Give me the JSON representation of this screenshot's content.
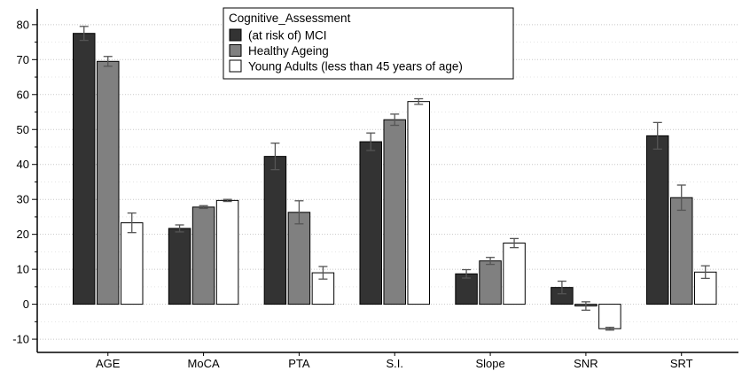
{
  "chart_data": {
    "type": "bar",
    "categories": [
      "AGE",
      "MoCA",
      "PTA",
      "S.I.",
      "Slope",
      "SNR",
      "SRT"
    ],
    "ylim": [
      -12,
      84
    ],
    "yticks": [
      -10,
      0,
      10,
      20,
      30,
      40,
      50,
      60,
      70,
      80
    ],
    "grid": "horizontal-dotted",
    "legend": {
      "title": "Cognitive_Assessment",
      "placement": "top-center"
    },
    "series": [
      {
        "name": "(at risk of) MCI",
        "color": "#333333",
        "values": [
          77.5,
          21.7,
          42.3,
          46.5,
          8.7,
          4.8,
          48.2
        ],
        "errors": [
          2.0,
          1.0,
          3.8,
          2.5,
          1.2,
          1.8,
          3.8
        ]
      },
      {
        "name": "Healthy Ageing",
        "color": "#808080",
        "values": [
          69.5,
          27.8,
          26.3,
          52.8,
          12.4,
          -0.5,
          30.5
        ],
        "errors": [
          1.4,
          0.4,
          3.3,
          1.6,
          1.0,
          1.2,
          3.6
        ]
      },
      {
        "name": "Young Adults (less than 45 years of age)",
        "color": "#ffffff",
        "values": [
          23.3,
          29.7,
          9.0,
          58.0,
          17.5,
          -7.0,
          9.2
        ],
        "errors": [
          2.8,
          0.3,
          1.8,
          0.8,
          1.3,
          0.4,
          1.8
        ]
      }
    ]
  }
}
